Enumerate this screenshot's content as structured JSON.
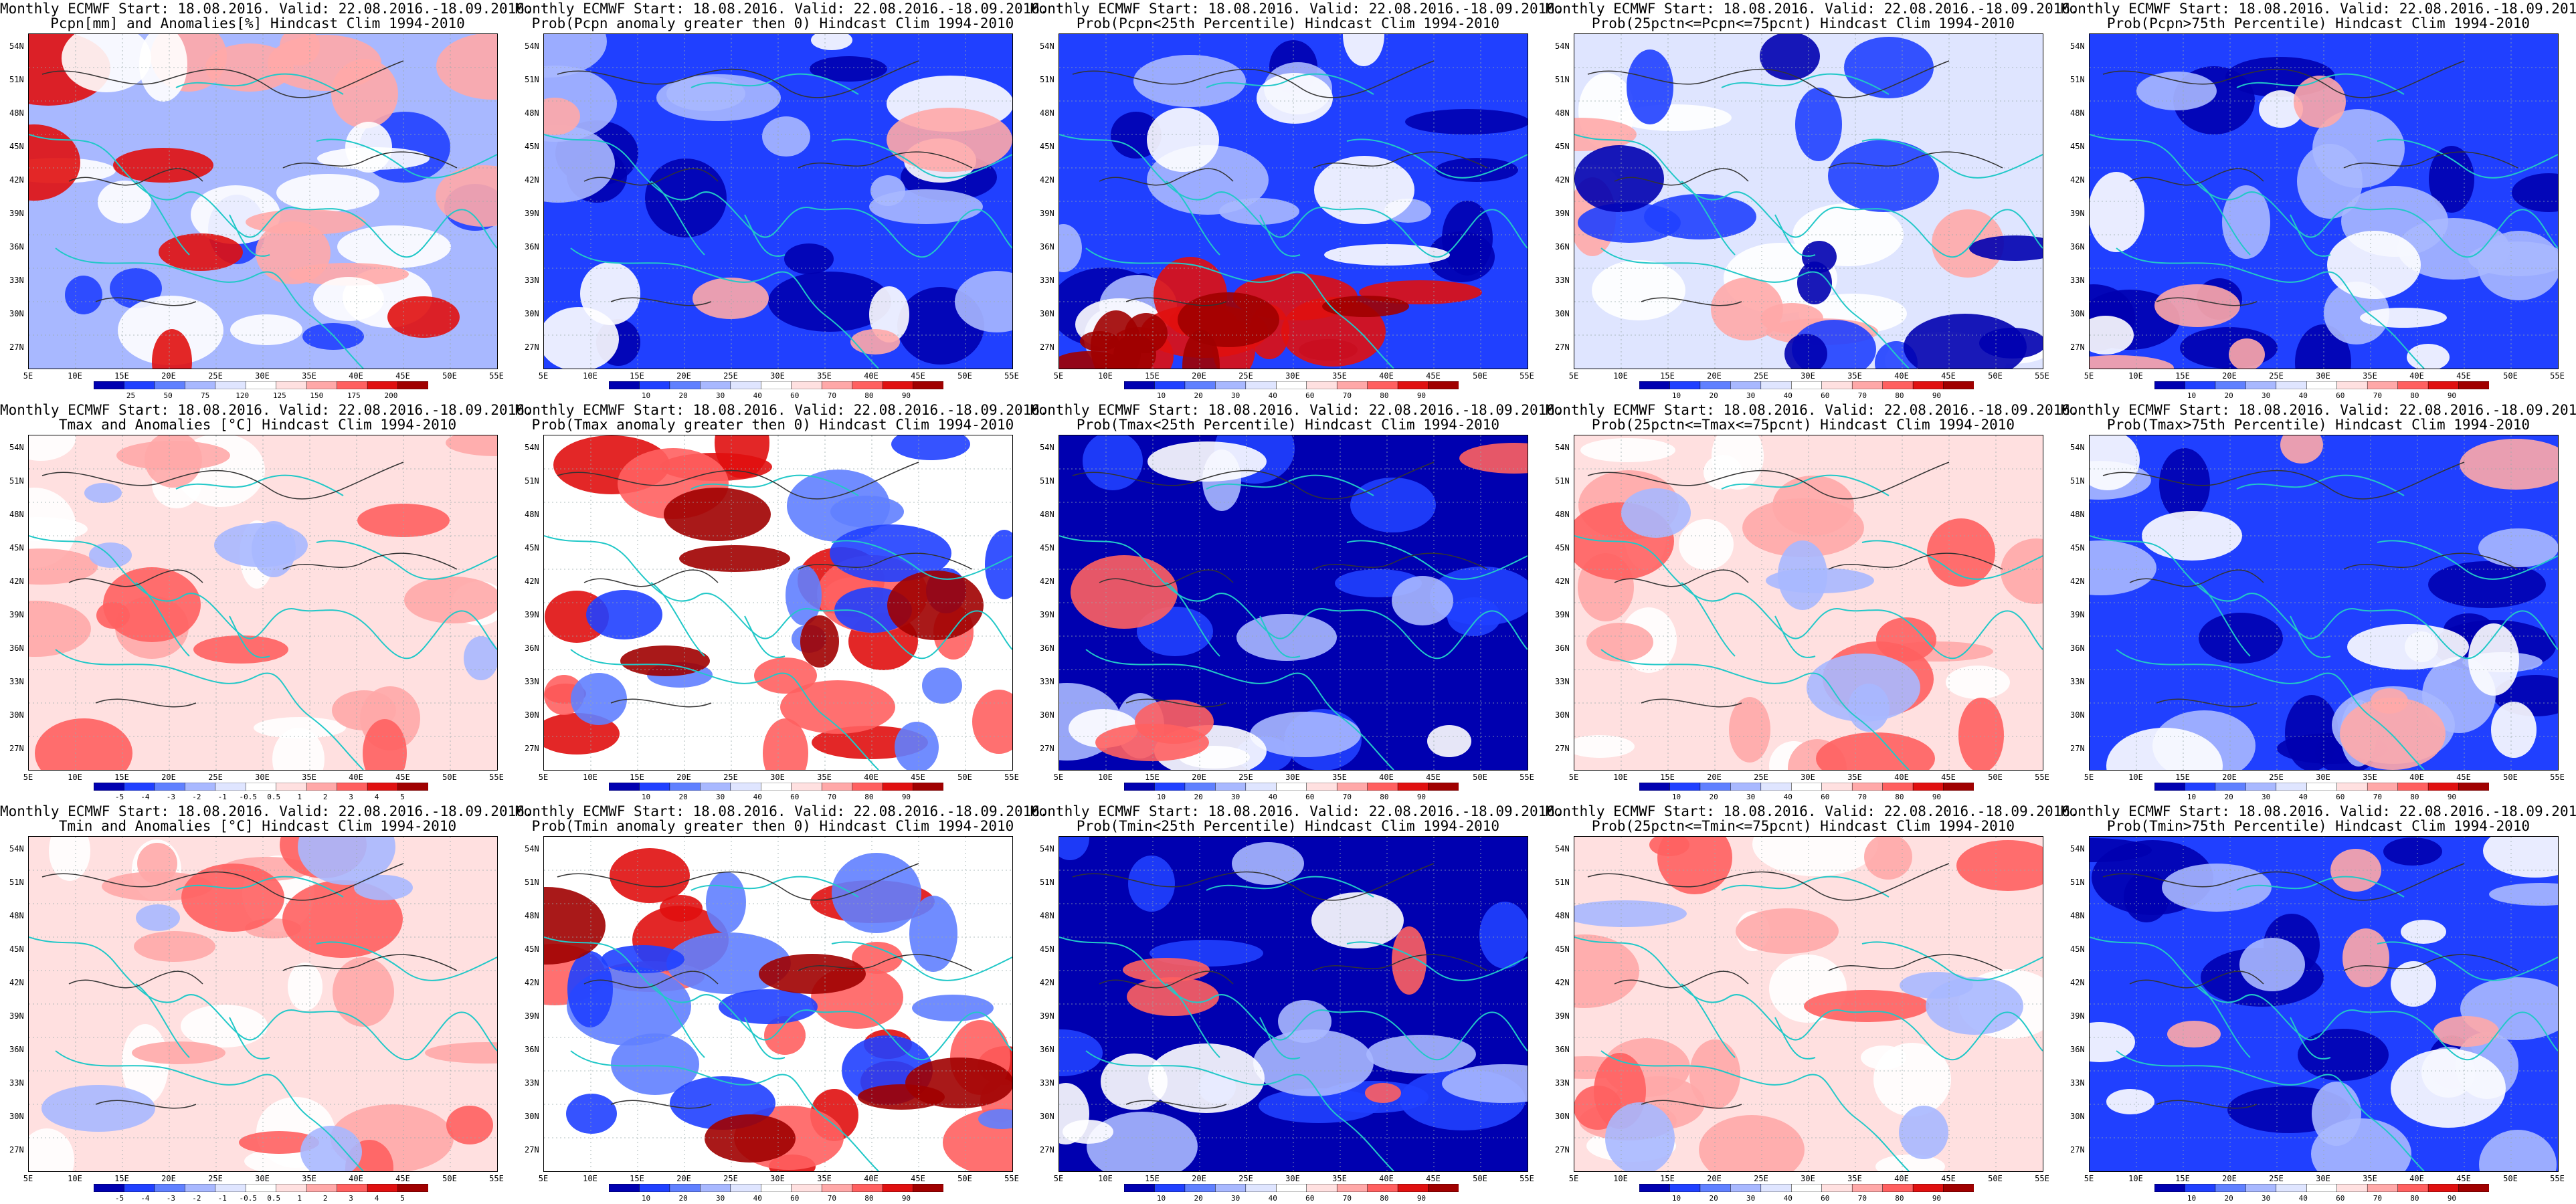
{
  "title_line1": "Monthly ECMWF Start: 18.08.2016. Valid: 22.08.2016.-18.09.2016.",
  "lat_labels": [
    "54N",
    "51N",
    "48N",
    "45N",
    "42N",
    "39N",
    "36N",
    "33N",
    "30N",
    "27N"
  ],
  "lon_labels": [
    "5E",
    "10E",
    "15E",
    "20E",
    "25E",
    "30E",
    "35E",
    "40E",
    "45E",
    "50E",
    "55E"
  ],
  "prob_ticks": [
    "10",
    "20",
    "30",
    "40",
    "60",
    "70",
    "80",
    "90"
  ],
  "panels": [
    {
      "title2": "Pcpn[mm] and Anomalies[%] Hindcast Clim 1994-2010",
      "scheme": "precip",
      "cbar_ticks": [
        "25",
        "50",
        "75",
        "120",
        "125",
        "150",
        "175",
        "200"
      ]
    },
    {
      "title2": "Prob(Pcpn anomaly greater then 0) Hindcast Clim 1994-2010",
      "scheme": "blue"
    },
    {
      "title2": "Prob(Pcpn<25th Percentile) Hindcast Clim 1994-2010",
      "scheme": "redsouth"
    },
    {
      "title2": "Prob(25pctn<=Pcpn<=75pcnt) Hindcast Clim 1994-2010",
      "scheme": "whiteblue"
    },
    {
      "title2": "Prob(Pcpn>75th Percentile) Hindcast Clim 1994-2010",
      "scheme": "blue"
    },
    {
      "title2": "Tmax and Anomalies [°C] Hindcast Clim 1994-2010",
      "scheme": "lightred",
      "cbar_ticks": [
        "-5",
        "-4",
        "-3",
        "-2",
        "-1",
        "-0.5",
        "0.5",
        "1",
        "2",
        "3",
        "4",
        "5"
      ]
    },
    {
      "title2": "Prob(Tmax anomaly greater then 0) Hindcast Clim 1994-2010",
      "scheme": "red"
    },
    {
      "title2": "Prob(Tmax<25th Percentile) Hindcast Clim 1994-2010",
      "scheme": "deepblue"
    },
    {
      "title2": "Prob(25pctn<=Tmax<=75pcnt) Hindcast Clim 1994-2010",
      "scheme": "lightred"
    },
    {
      "title2": "Prob(Tmax>75th Percentile) Hindcast Clim 1994-2010",
      "scheme": "blue"
    },
    {
      "title2": "Tmin and Anomalies [°C] Hindcast Clim 1994-2010",
      "scheme": "lightred",
      "cbar_ticks": [
        "-5",
        "-4",
        "-3",
        "-2",
        "-1",
        "-0.5",
        "0.5",
        "1",
        "2",
        "3",
        "4",
        "5"
      ]
    },
    {
      "title2": "Prob(Tmin anomaly greater then 0) Hindcast Clim 1994-2010",
      "scheme": "red"
    },
    {
      "title2": "Prob(Tmin<25th Percentile) Hindcast Clim 1994-2010",
      "scheme": "deepblue"
    },
    {
      "title2": "Prob(25pctn<=Tmin<=75pcnt) Hindcast Clim 1994-2010",
      "scheme": "lightred"
    },
    {
      "title2": "Prob(Tmin>75th Percentile) Hindcast Clim 1994-2010",
      "scheme": "blue"
    }
  ],
  "colors": {
    "coast": "#22c8c8",
    "contour": "#333333",
    "cbar": [
      "#0000b0",
      "#2040ff",
      "#6080ff",
      "#a8b8ff",
      "#dfe5ff",
      "#ffffff",
      "#ffe0e0",
      "#ffa8a8",
      "#ff6060",
      "#e01010",
      "#a00000"
    ]
  }
}
